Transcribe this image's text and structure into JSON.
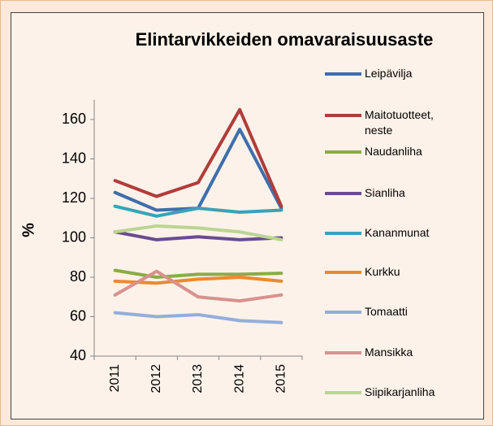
{
  "chart_data": {
    "type": "line",
    "title": "Elintarvikkeiden omavaraisuusaste",
    "y_label": "%",
    "categories": [
      "2011",
      "2012",
      "2013",
      "2014",
      "2015"
    ],
    "ylim": [
      40,
      170
    ],
    "yticks": [
      40,
      60,
      80,
      100,
      120,
      140,
      160
    ],
    "series": [
      {
        "name": "Leipävilja",
        "color": "#3e6ead",
        "values": [
          123,
          114,
          115,
          155,
          115
        ]
      },
      {
        "name": "Maitotuotteet, neste",
        "color": "#b03d3a",
        "values": [
          129,
          121,
          128,
          165,
          116
        ]
      },
      {
        "name": "Naudanliha",
        "color": "#8aac46",
        "values": [
          83.5,
          80,
          81.5,
          81.5,
          82
        ]
      },
      {
        "name": "Sianliha",
        "color": "#6a4c8e",
        "values": [
          103,
          99,
          100.5,
          99,
          100
        ]
      },
      {
        "name": "Kananmunat",
        "color": "#3aa2b9",
        "values": [
          116,
          111,
          115,
          113,
          114
        ]
      },
      {
        "name": "Kurkku",
        "color": "#ec8a2f",
        "values": [
          78,
          77,
          79,
          80,
          78
        ]
      },
      {
        "name": "Tomaatti",
        "color": "#93aedc",
        "values": [
          62,
          60,
          61,
          58,
          57
        ]
      },
      {
        "name": "Mansikka",
        "color": "#d9918f",
        "values": [
          71,
          83,
          70,
          68,
          71
        ]
      },
      {
        "name": "Siipikarjanliha",
        "color": "#bad593",
        "values": [
          103,
          106,
          105,
          103,
          99
        ]
      }
    ]
  }
}
